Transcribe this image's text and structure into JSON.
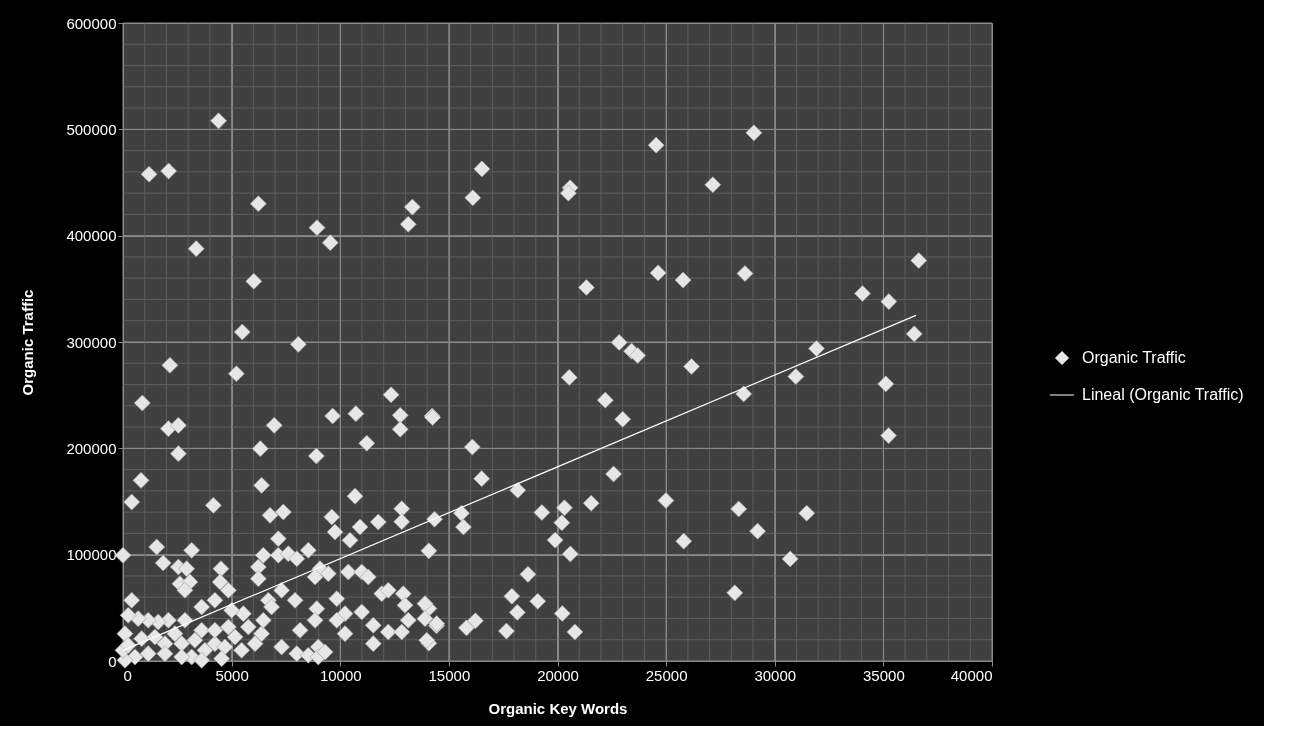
{
  "chart_data": {
    "type": "scatter",
    "xlabel": "Organic Key Words",
    "ylabel": "Organic Traffic",
    "xlim": [
      0,
      40000
    ],
    "xticks": [
      0,
      5000,
      10000,
      15000,
      20000,
      25000,
      30000,
      35000,
      40000
    ],
    "ylim": [
      0,
      600000
    ],
    "yticks": [
      0,
      100000,
      200000,
      300000,
      400000,
      500000,
      600000
    ],
    "grid": true,
    "legend": "right",
    "series": [
      {
        "name": "Organic Traffic",
        "color": "#e6e6e6",
        "marker": "diamond",
        "x": [
          4400,
          1200,
          2100,
          6230,
          8930,
          9540,
          13320,
          13130,
          3370,
          6020,
          5490,
          8070,
          5220,
          2160,
          890,
          2090,
          2550,
          6960,
          2550,
          6320,
          8900,
          9650,
          10720,
          12760,
          12760,
          14230,
          12340,
          11220,
          16080,
          16510,
          18170,
          830,
          6380,
          10680,
          16520,
          16100,
          20580,
          20500,
          24540,
          29040,
          27150,
          24630,
          25780,
          28630,
          21330,
          36630,
          34040,
          35250,
          36420,
          22840,
          23410,
          23690,
          26170,
          20540,
          31920,
          30970,
          28570,
          35110,
          35240,
          22200,
          23000,
          14250,
          22580,
          14340,
          15580,
          15670,
          19280,
          20320,
          20200,
          21550,
          24990,
          19890,
          20590,
          25810,
          28340,
          29210,
          31470,
          30710,
          28160,
          18640,
          17900,
          19090,
          18150,
          20220,
          17650,
          20800,
          16220,
          15810,
          14430,
          14080,
          14080,
          14080,
          400,
          4160,
          6770,
          7380,
          9610,
          11750,
          12830,
          12830,
          9760,
          10910,
          10450,
          7150,
          0,
          1550,
          3160,
          1850,
          2550,
          2930,
          2620,
          3080,
          2850,
          4510,
          4470,
          4850,
          6460,
          6230,
          6230,
          7150,
          7610,
          8000,
          8530,
          9070,
          8840,
          9450,
          7300,
          7920,
          8920,
          9840,
          10220,
          10990,
          10370,
          10990,
          11290,
          11910,
          12210,
          12900,
          12980,
          13900,
          13900,
          14440,
          13980,
          11520,
          12210,
          13130,
          12830,
          10220,
          11520,
          9840,
          8840,
          8150,
          7300,
          8000,
          8530,
          8990,
          8990,
          9300,
          6380,
          6460,
          5770,
          6690,
          6840,
          5540,
          5000,
          4230,
          3620,
          3620,
          2850,
          2090,
          1620,
          1160,
          700,
          400,
          240,
          90,
          860,
          1470,
          1930,
          2390,
          2700,
          3310,
          3770,
          4230,
          4690,
          5160,
          5460,
          6080,
          4850,
          4230,
          1930,
          1160,
          550,
          90,
          0,
          240,
          3160,
          2700,
          3620,
          4540
        ],
        "values": [
          508000,
          457700,
          460800,
          430000,
          407500,
          393400,
          426900,
          410700,
          387800,
          357100,
          309400,
          297800,
          270200,
          278100,
          242600,
          218500,
          221600,
          221600,
          195000,
          199700,
          192800,
          230400,
          232600,
          231000,
          217900,
          230400,
          250400,
          204800,
          201200,
          171500,
          160600,
          169900,
          165200,
          155000,
          462800,
          435600,
          445000,
          440000,
          485100,
          496700,
          447900,
          365000,
          358200,
          364400,
          351300,
          376600,
          345600,
          338000,
          307600,
          299600,
          291400,
          287300,
          276900,
          266700,
          293900,
          267500,
          251200,
          260600,
          212000,
          245300,
          227300,
          229100,
          175900,
          133300,
          139000,
          126000,
          139700,
          144100,
          130000,
          148400,
          150900,
          113700,
          100700,
          112700,
          143000,
          122100,
          139000,
          96000,
          64100,
          81500,
          60900,
          56200,
          45700,
          44700,
          28100,
          27300,
          37800,
          31200,
          33100,
          16700,
          49400,
          103600,
          149500,
          146400,
          137000,
          140100,
          135400,
          130700,
          143200,
          131000,
          121300,
          126000,
          113500,
          115000,
          99400,
          107200,
          104100,
          92200,
          88400,
          86800,
          72700,
          74300,
          66500,
          86800,
          74300,
          66500,
          99400,
          88400,
          77400,
          99400,
          100900,
          96200,
          104100,
          86800,
          79000,
          82100,
          66500,
          57100,
          49200,
          58600,
          44500,
          46100,
          83700,
          83700,
          79000,
          63300,
          66500,
          63300,
          52400,
          53900,
          39800,
          35100,
          19500,
          16300,
          27300,
          38300,
          27300,
          25700,
          33600,
          38300,
          38300,
          28900,
          13200,
          6900,
          5400,
          13200,
          3800,
          8500,
          25700,
          38300,
          32000,
          57100,
          50800,
          44500,
          47700,
          57100,
          50800,
          28900,
          38300,
          38300,
          36700,
          38300,
          39800,
          57100,
          43000,
          25700,
          21000,
          22600,
          16300,
          25700,
          16300,
          19500,
          10100,
          16300,
          13200,
          22600,
          10100,
          16300,
          32000,
          28900,
          6900,
          6900,
          3800,
          700,
          10100,
          14700,
          3800,
          3800,
          700,
          2200
        ]
      },
      {
        "name": "Lineal (Organic Traffic)",
        "type": "line",
        "color": "#ffffff",
        "x": [
          0,
          36500
        ],
        "values": [
          10000,
          325000
        ]
      }
    ]
  }
}
